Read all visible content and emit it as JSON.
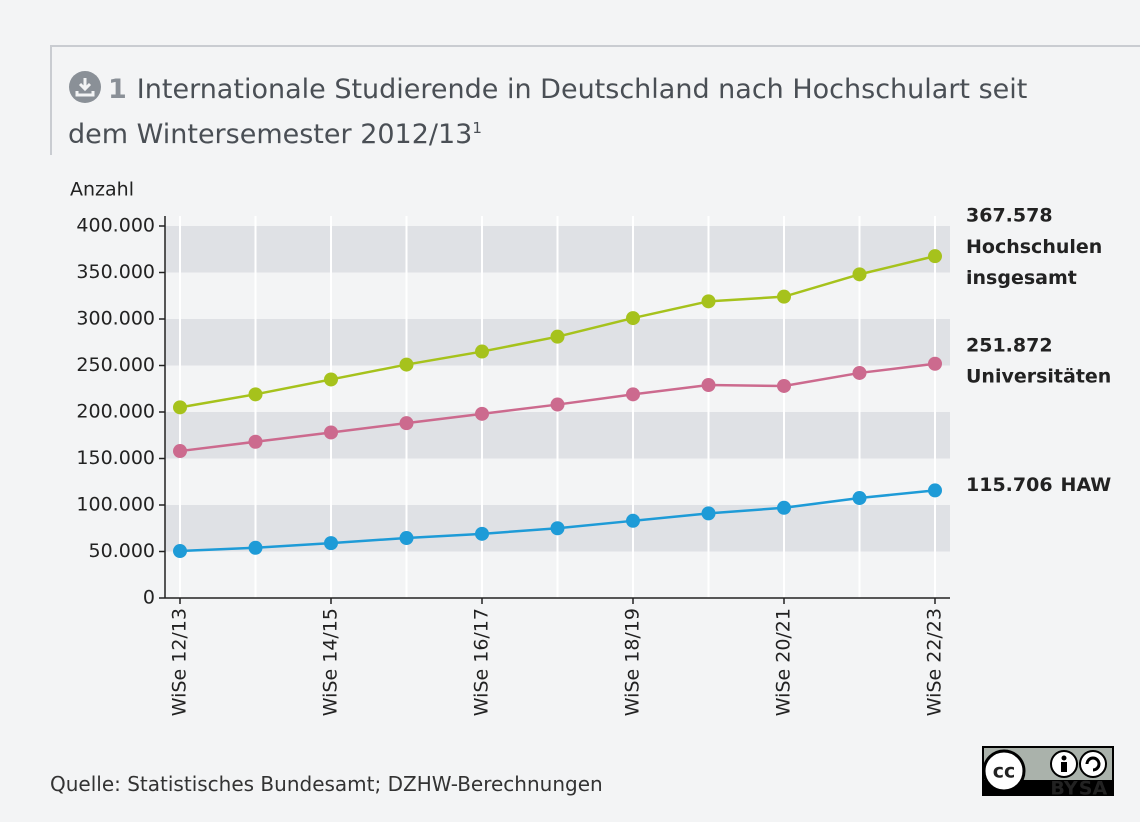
{
  "chart_data": {
    "type": "line",
    "figure_number": "1",
    "title": "Internationale Studierende in Deutschland nach Hochschulart seit dem Wintersemester 2012/13",
    "title_footnote": "1",
    "y_label": "Anzahl",
    "source": "Quelle: Statistisches Bundesamt; DZHW-Berechnungen",
    "license": {
      "cc": "cc",
      "by": "BY",
      "sa": "SA"
    },
    "categories": [
      "WiSe 12/13",
      null,
      "WiSe 14/15",
      null,
      "WiSe 16/17",
      null,
      "WiSe 18/19",
      null,
      "WiSe 20/21",
      null,
      "WiSe 22/23"
    ],
    "series": [
      {
        "name": "Hochschulen insgesamt",
        "color": "#a6c21c",
        "values": [
          205000,
          219000,
          235000,
          251000,
          265000,
          281000,
          301000,
          319000,
          324000,
          348000,
          367578
        ],
        "value_labels": [
          null,
          null,
          null,
          null,
          null,
          null,
          null,
          null,
          null,
          null,
          "367.578"
        ]
      },
      {
        "name": "Universitäten",
        "color": "#cc6a8e",
        "values": [
          158000,
          168000,
          178000,
          188000,
          198000,
          208000,
          219000,
          229000,
          228000,
          242000,
          251872
        ],
        "value_labels": [
          null,
          null,
          null,
          null,
          null,
          null,
          null,
          null,
          null,
          null,
          "251.872"
        ]
      },
      {
        "name": "HAW",
        "color": "#1e9bd7",
        "values": [
          50500,
          54000,
          59000,
          64500,
          69000,
          75000,
          83000,
          91000,
          97000,
          107500,
          115706
        ],
        "value_labels": [
          null,
          null,
          null,
          null,
          null,
          null,
          null,
          null,
          null,
          null,
          "115.706"
        ]
      }
    ],
    "ylim": [
      0,
      400000
    ],
    "yticks": [
      0,
      {
        "value": 50000,
        "label": "50.000"
      },
      {
        "value": 100000,
        "label": "100.000"
      },
      {
        "value": 150000,
        "label": "150.000"
      },
      {
        "value": 200000,
        "label": "200.000"
      },
      {
        "value": 250000,
        "label": "250.000"
      },
      {
        "value": 300000,
        "label": "300.000"
      },
      {
        "value": 350000,
        "label": "350.000"
      },
      {
        "value": 400000,
        "label": "400.000"
      }
    ],
    "grid": "bands"
  }
}
